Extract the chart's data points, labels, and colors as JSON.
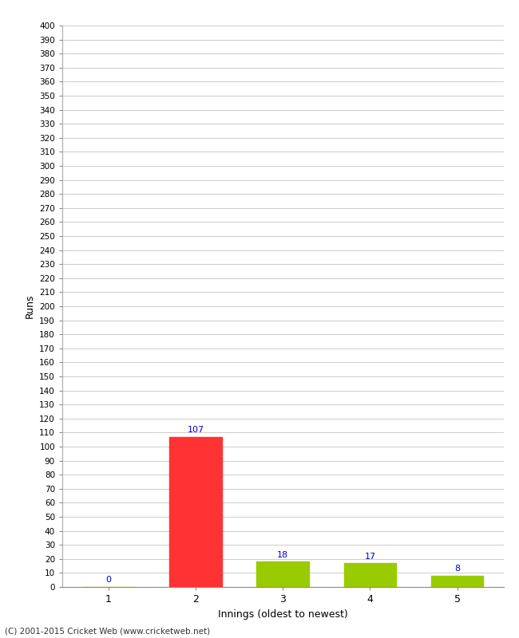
{
  "categories": [
    1,
    2,
    3,
    4,
    5
  ],
  "values": [
    0,
    107,
    18,
    17,
    8
  ],
  "bar_colors": [
    "#99cc00",
    "#ff3333",
    "#99cc00",
    "#99cc00",
    "#99cc00"
  ],
  "xlabel": "Innings (oldest to newest)",
  "ylabel": "Runs",
  "ylim": [
    0,
    400
  ],
  "annotation_color": "#0000cc",
  "background_color": "#ffffff",
  "grid_color": "#cccccc",
  "footer": "(C) 2001-2015 Cricket Web (www.cricketweb.net)"
}
